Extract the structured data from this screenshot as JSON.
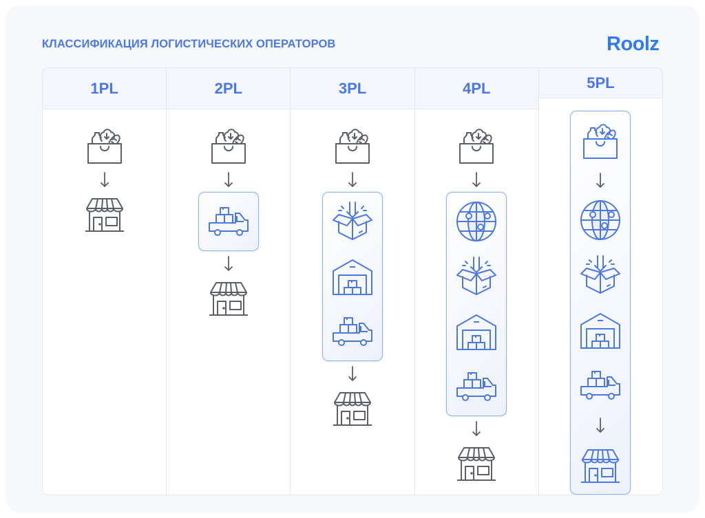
{
  "title": "КЛАССИФИКАЦИЯ ЛОГИСТИЧЕСКИХ ОПЕРАТОРОВ",
  "logo": "Roolz",
  "colors": {
    "accent": "#4a78e6",
    "icon_gray": "#5b5f68",
    "highlight_border": "#8fb4f5"
  },
  "columns": [
    {
      "label": "1PL",
      "chain": [
        {
          "icon": "goods-icon"
        },
        {
          "icon": "store-icon"
        }
      ],
      "group": []
    },
    {
      "label": "2PL",
      "chain": [
        {
          "icon": "goods-icon"
        },
        {
          "group": [
            "truck-icon"
          ]
        },
        {
          "icon": "store-icon"
        }
      ]
    },
    {
      "label": "3PL",
      "chain": [
        {
          "icon": "goods-icon"
        },
        {
          "group": [
            "receiving-box-icon",
            "warehouse-icon",
            "truck-icon"
          ]
        },
        {
          "icon": "store-icon"
        }
      ]
    },
    {
      "label": "4PL",
      "chain": [
        {
          "icon": "goods-icon"
        },
        {
          "group": [
            "globe-network-icon",
            "receiving-box-icon",
            "warehouse-icon",
            "truck-icon"
          ]
        },
        {
          "icon": "store-icon"
        }
      ]
    },
    {
      "label": "5PL",
      "chain": [
        {
          "group": [
            "goods-icon",
            "arrow",
            "globe-network-icon",
            "receiving-box-icon",
            "warehouse-icon",
            "truck-icon",
            "arrow",
            "store-icon"
          ]
        }
      ]
    }
  ]
}
